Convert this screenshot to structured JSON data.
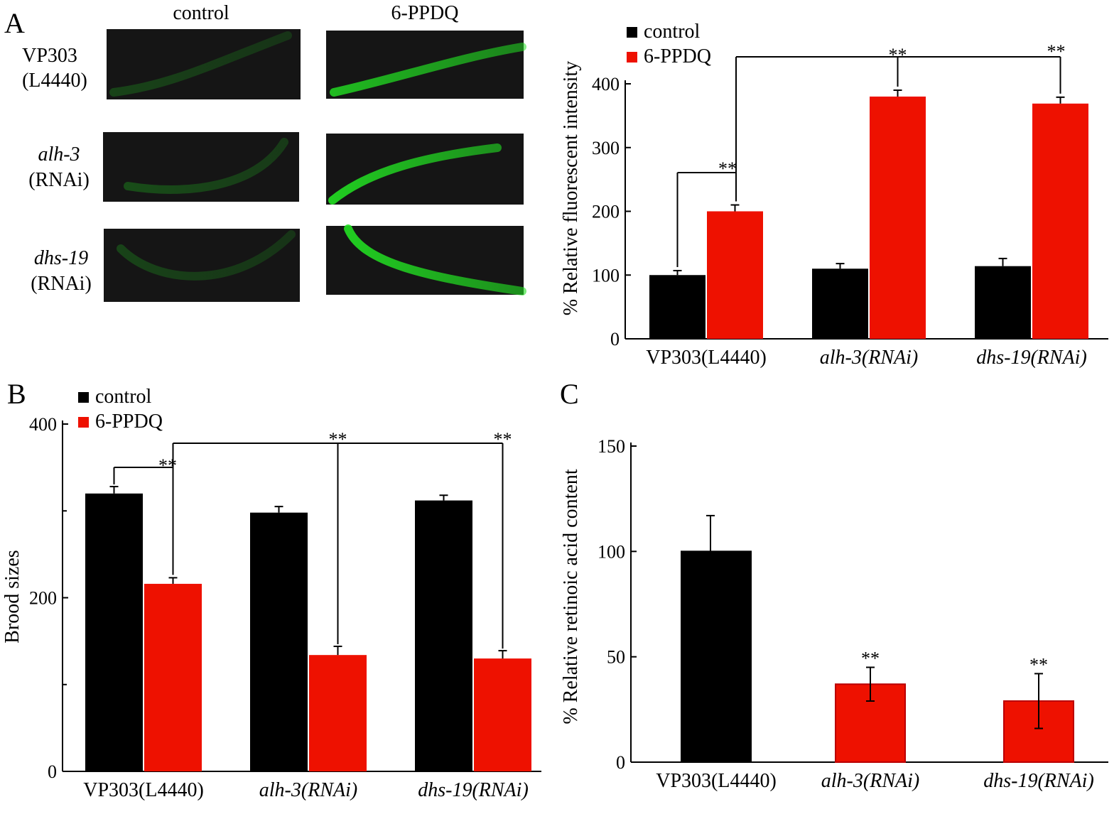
{
  "panel_letters": {
    "a": "A",
    "b": "B",
    "c": "C"
  },
  "micrographs": {
    "column_headers": [
      "control",
      "6-PPDQ"
    ],
    "rows": [
      {
        "label_line1": "VP303",
        "label_line2": "(L4440)",
        "italic": false
      },
      {
        "label_line1": "alh-3",
        "label_line2": "(RNAi)",
        "italic": true
      },
      {
        "label_line1": "dhs-19",
        "label_line2": "(RNAi)",
        "italic": true
      }
    ]
  },
  "colors": {
    "control": "#000000",
    "treatment": "#ee1100",
    "fluorescence": "#22e022",
    "image_bg": "#151515"
  },
  "chart_data": [
    {
      "id": "A",
      "type": "bar",
      "ylabel": "% Relative fluorescent intensity",
      "ylim": [
        0,
        400
      ],
      "yticks": [
        0,
        100,
        200,
        300,
        400
      ],
      "categories": [
        "VP303(L4440)",
        "alh-3(RNAi)",
        "dhs-19(RNAi)"
      ],
      "category_italic": [
        false,
        true,
        true
      ],
      "legend": {
        "placement": "top-left",
        "entries": [
          "control",
          "6-PPDQ"
        ]
      },
      "series": [
        {
          "name": "control",
          "values": [
            100,
            110,
            114
          ],
          "errors": [
            7,
            8,
            12
          ]
        },
        {
          "name": "6-PPDQ",
          "values": [
            200,
            380,
            369
          ],
          "errors": [
            10,
            10,
            10
          ]
        }
      ],
      "significance": [
        "**",
        "**",
        "**"
      ]
    },
    {
      "id": "B",
      "type": "bar",
      "ylabel": "Brood sizes",
      "ylim": [
        0,
        400
      ],
      "yticks": [
        0,
        200,
        400
      ],
      "minor_yticks": [
        100,
        300
      ],
      "categories": [
        "VP303(L4440)",
        "alh-3(RNAi)",
        "dhs-19(RNAi)"
      ],
      "category_italic": [
        false,
        true,
        true
      ],
      "legend": {
        "placement": "top-left",
        "entries": [
          "control",
          "6-PPDQ"
        ]
      },
      "series": [
        {
          "name": "control",
          "values": [
            320,
            298,
            312
          ],
          "errors": [
            8,
            7,
            6
          ]
        },
        {
          "name": "6-PPDQ",
          "values": [
            216,
            134,
            130
          ],
          "errors": [
            7,
            10,
            9
          ]
        }
      ],
      "significance": [
        "**",
        "**",
        "**"
      ]
    },
    {
      "id": "C",
      "type": "bar",
      "ylabel": "% Relative retinoic acid content",
      "ylim": [
        0,
        150
      ],
      "yticks": [
        0,
        50,
        100,
        150
      ],
      "categories": [
        "VP303(L4440)",
        "alh-3(RNAi)",
        "dhs-19(RNAi)"
      ],
      "category_italic": [
        false,
        true,
        true
      ],
      "values": [
        100,
        37,
        29
      ],
      "errors": [
        17,
        8,
        13
      ],
      "bar_colors": [
        "control",
        "treatment",
        "treatment"
      ],
      "significance": [
        "",
        "**",
        "**"
      ]
    }
  ]
}
